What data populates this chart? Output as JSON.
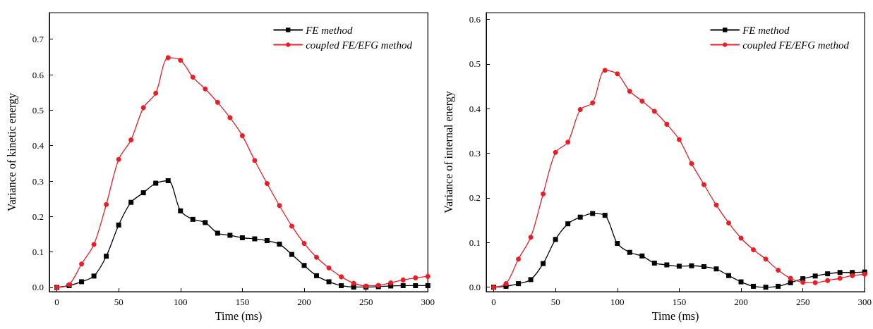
{
  "chart_data": [
    {
      "type": "line",
      "xlabel": "Time (ms)",
      "ylabel": "Variance of kinetic energy",
      "x": [
        0,
        10,
        20,
        30,
        40,
        50,
        60,
        70,
        80,
        90,
        100,
        110,
        120,
        130,
        140,
        150,
        160,
        170,
        180,
        190,
        200,
        210,
        220,
        230,
        240,
        250,
        260,
        270,
        280,
        290,
        300
      ],
      "series": [
        {
          "name": "FE method",
          "color": "#000000",
          "marker": "square",
          "values": [
            0,
            0.005,
            0.016,
            0.032,
            0.088,
            0.176,
            0.24,
            0.267,
            0.294,
            0.301,
            0.216,
            0.192,
            0.183,
            0.153,
            0.147,
            0.14,
            0.137,
            0.132,
            0.122,
            0.093,
            0.062,
            0.033,
            0.016,
            0.005,
            0.001,
            0.001,
            0.002,
            0.004,
            0.005,
            0.005,
            0.005
          ]
        },
        {
          "name": "coupled FE/EFG method",
          "color": "#ee1c25",
          "marker": "circle",
          "values": [
            0,
            0.008,
            0.066,
            0.121,
            0.234,
            0.361,
            0.416,
            0.507,
            0.548,
            0.648,
            0.641,
            0.593,
            0.56,
            0.522,
            0.479,
            0.428,
            0.358,
            0.293,
            0.231,
            0.173,
            0.124,
            0.085,
            0.055,
            0.03,
            0.012,
            0.004,
            0.006,
            0.013,
            0.021,
            0.027,
            0.031
          ]
        }
      ],
      "xlim": [
        -6,
        300
      ],
      "xticks": [
        0,
        50,
        100,
        150,
        200,
        250,
        300
      ],
      "ylim": [
        -0.012,
        0.775
      ],
      "yticks": [
        {
          "value": 0,
          "label": "0.0"
        },
        0.1,
        0.2,
        0.3,
        0.4,
        0.5,
        0.6,
        0.7
      ],
      "grid": false,
      "legend": "top right",
      "line_style": "solid"
    },
    {
      "type": "line",
      "xlabel": "Time (ms)",
      "ylabel": "Variance of internal energy",
      "x": [
        0,
        10,
        20,
        30,
        40,
        50,
        60,
        70,
        80,
        90,
        100,
        110,
        120,
        130,
        140,
        150,
        160,
        170,
        180,
        190,
        200,
        210,
        220,
        230,
        240,
        250,
        260,
        270,
        280,
        290,
        300
      ],
      "series": [
        {
          "name": "FE method",
          "color": "#000000",
          "marker": "square",
          "values": [
            0,
            0.002,
            0.008,
            0.017,
            0.053,
            0.107,
            0.142,
            0.157,
            0.165,
            0.161,
            0.098,
            0.078,
            0.07,
            0.054,
            0.05,
            0.047,
            0.048,
            0.046,
            0.041,
            0.026,
            0.012,
            0.002,
            0,
            0.002,
            0.01,
            0.019,
            0.025,
            0.03,
            0.033,
            0.033,
            0.034
          ]
        },
        {
          "name": "coupled FE/EFG method",
          "color": "#ee1c25",
          "marker": "circle",
          "values": [
            0,
            0.008,
            0.063,
            0.112,
            0.209,
            0.302,
            0.325,
            0.398,
            0.413,
            0.486,
            0.478,
            0.439,
            0.417,
            0.394,
            0.365,
            0.331,
            0.277,
            0.23,
            0.184,
            0.144,
            0.11,
            0.084,
            0.063,
            0.038,
            0.02,
            0.011,
            0.01,
            0.015,
            0.02,
            0.026,
            0.029
          ]
        }
      ],
      "xlim": [
        -6,
        300
      ],
      "xticks": [
        0,
        50,
        100,
        150,
        200,
        250,
        300
      ],
      "ylim": [
        -0.01,
        0.615
      ],
      "yticks": [
        {
          "value": 0,
          "label": "0.0"
        },
        0.1,
        0.2,
        0.3,
        0.4,
        0.5,
        0.6
      ],
      "grid": false,
      "legend": "top right",
      "line_style": "solid"
    }
  ]
}
